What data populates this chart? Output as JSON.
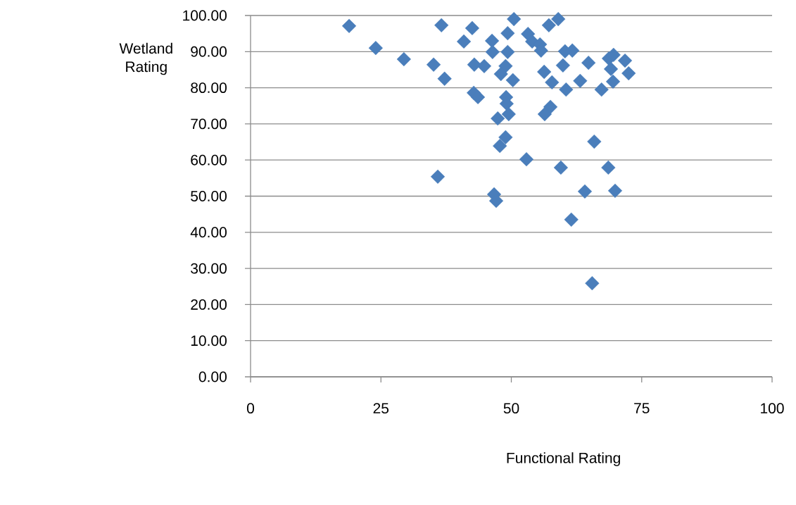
{
  "chart_data": {
    "type": "scatter",
    "xlabel": "Functional Rating",
    "ylabel": "Wetland Rating",
    "x": [
      18.9,
      24.0,
      29.4,
      35.1,
      37.2,
      36.6,
      42.5,
      40.9,
      42.9,
      44.8,
      42.8,
      43.6,
      35.9,
      50.5,
      49.3,
      46.3,
      46.4,
      49.3,
      48.9,
      48.0,
      50.3,
      49.0,
      49.1,
      49.5,
      47.4,
      48.9,
      47.8,
      46.7,
      47.1,
      52.9,
      57.2,
      59.0,
      53.2,
      54.0,
      55.5,
      55.7,
      60.3,
      61.7,
      56.3,
      59.9,
      57.8,
      60.5,
      63.2,
      64.8,
      56.4,
      57.5,
      68.7,
      69.6,
      71.8,
      69.1,
      72.5,
      69.5,
      67.3,
      65.9,
      59.5,
      68.6,
      64.1,
      69.9,
      61.5,
      65.5
    ],
    "values": [
      97.1,
      91.0,
      87.9,
      86.4,
      82.5,
      97.3,
      96.5,
      92.8,
      86.4,
      86.0,
      78.6,
      77.4,
      55.4,
      99.0,
      95.1,
      93.0,
      89.9,
      89.9,
      86.0,
      83.8,
      82.1,
      77.4,
      75.6,
      72.7,
      71.5,
      66.3,
      63.9,
      50.5,
      48.7,
      60.2,
      97.3,
      99.0,
      94.9,
      92.8,
      92.0,
      90.3,
      90.1,
      90.3,
      84.4,
      86.2,
      81.5,
      79.5,
      81.9,
      86.9,
      72.7,
      74.7,
      88.1,
      89.1,
      87.5,
      85.2,
      84.0,
      81.7,
      79.5,
      65.1,
      57.9,
      57.9,
      51.3,
      51.5,
      43.5,
      25.9
    ],
    "color": "#4a7ebb",
    "marker": "diamond",
    "grid": "y",
    "xlim": [
      0,
      100
    ],
    "ylim": [
      0,
      100
    ],
    "xticks": [
      0,
      25,
      50,
      75,
      100
    ],
    "yticks": [
      {
        "value": 0,
        "label": "0.00"
      },
      {
        "value": 10,
        "label": "10.00"
      },
      {
        "value": 20,
        "label": "20.00"
      },
      {
        "value": 30,
        "label": "30.00"
      },
      {
        "value": 40,
        "label": "40.00"
      },
      {
        "value": 50,
        "label": "50.00"
      },
      {
        "value": 60,
        "label": "60.00"
      },
      {
        "value": 70,
        "label": "70.00"
      },
      {
        "value": 80,
        "label": "80.00"
      },
      {
        "value": 90,
        "label": "90.00"
      },
      {
        "value": 100,
        "label": "100.00"
      }
    ]
  }
}
